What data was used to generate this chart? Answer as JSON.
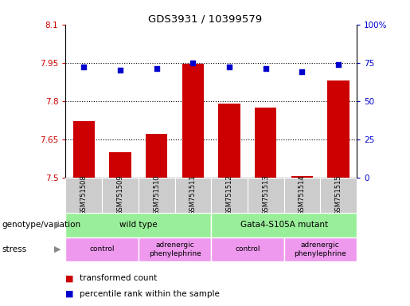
{
  "title": "GDS3931 / 10399579",
  "samples": [
    "GSM751508",
    "GSM751509",
    "GSM751510",
    "GSM751511",
    "GSM751512",
    "GSM751513",
    "GSM751514",
    "GSM751515"
  ],
  "transformed_count": [
    7.72,
    7.6,
    7.67,
    7.945,
    7.79,
    7.775,
    7.505,
    7.88
  ],
  "percentile_rank": [
    72,
    70,
    71,
    75,
    72,
    71,
    69,
    74
  ],
  "ylim_left": [
    7.5,
    8.1
  ],
  "ylim_right": [
    0,
    100
  ],
  "yticks_left": [
    7.5,
    7.65,
    7.8,
    7.95,
    8.1
  ],
  "yticks_right": [
    0,
    25,
    50,
    75,
    100
  ],
  "ytick_labels_left": [
    "7.5",
    "7.65",
    "7.8",
    "7.95",
    "8.1"
  ],
  "ytick_labels_right": [
    "0",
    "25",
    "50",
    "75",
    "100%"
  ],
  "hlines": [
    7.65,
    7.8,
    7.95
  ],
  "bar_color": "#cc0000",
  "scatter_color": "#0000cc",
  "genotype_label": "genotype/variation",
  "stress_label": "stress",
  "geno_groups": [
    {
      "label": "wild type",
      "start": 0,
      "end": 4
    },
    {
      "label": "Gata4-S105A mutant",
      "start": 4,
      "end": 8
    }
  ],
  "stress_groups": [
    {
      "label": "control",
      "start": 0,
      "end": 2
    },
    {
      "label": "adrenergic\nphenylephrine",
      "start": 2,
      "end": 4
    },
    {
      "label": "control",
      "start": 4,
      "end": 6
    },
    {
      "label": "adrenergic\nphenylephrine",
      "start": 6,
      "end": 8
    }
  ],
  "geno_color": "#99ee99",
  "stress_color": "#ee99ee",
  "sample_bg": "#cccccc",
  "legend_items": [
    {
      "label": "transformed count",
      "color": "#cc0000"
    },
    {
      "label": "percentile rank within the sample",
      "color": "#0000cc"
    }
  ]
}
